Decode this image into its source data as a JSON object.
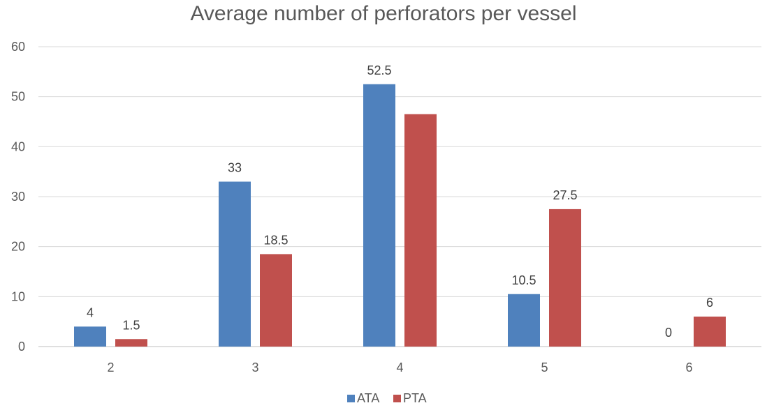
{
  "chart_data": {
    "type": "bar",
    "title": "Average number of perforators per vessel",
    "xlabel": "",
    "ylabel": "",
    "categories": [
      "2",
      "3",
      "4",
      "5",
      "6"
    ],
    "series": [
      {
        "name": "ATA",
        "color": "#4F81BD",
        "values": [
          4,
          33,
          52.5,
          10.5,
          0
        ],
        "labels": [
          "4",
          "33",
          "52.5",
          "10.5",
          "0"
        ]
      },
      {
        "name": "PTA",
        "color": "#C0504D",
        "values": [
          1.5,
          18.5,
          46.5,
          27.5,
          6
        ],
        "labels": [
          "1.5",
          "18.5",
          "",
          "27.5",
          "6"
        ]
      }
    ],
    "ylim": [
      0,
      60
    ],
    "yticks": [
      0,
      10,
      20,
      30,
      40,
      50,
      60
    ],
    "grid": true,
    "legend": "bottom"
  }
}
